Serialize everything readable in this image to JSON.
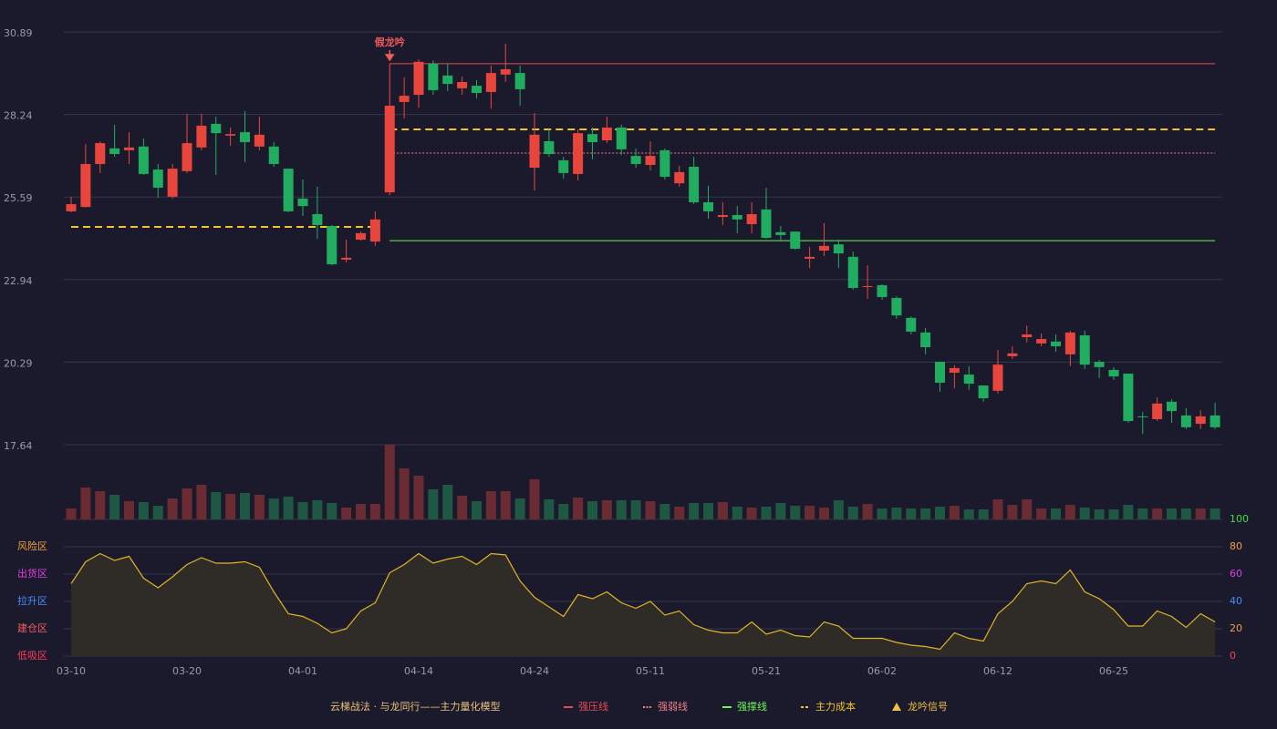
{
  "chart_data": {
    "type": "candlestick",
    "categories": [
      "03-10",
      null,
      null,
      null,
      null,
      null,
      null,
      null,
      "03-20",
      null,
      null,
      null,
      null,
      null,
      null,
      null,
      "04-01",
      null,
      null,
      null,
      null,
      null,
      null,
      null,
      "04-14",
      null,
      null,
      null,
      null,
      null,
      null,
      null,
      "04-24",
      null,
      null,
      null,
      null,
      null,
      null,
      null,
      "05-11",
      null,
      null,
      null,
      null,
      null,
      null,
      null,
      "05-21",
      null,
      null,
      null,
      null,
      null,
      null,
      null,
      "06-02",
      null,
      null,
      null,
      null,
      null,
      null,
      null,
      "06-12",
      null,
      null,
      null,
      null,
      null,
      null,
      null,
      "06-25",
      null,
      null,
      null,
      null,
      null,
      null,
      null
    ],
    "ylim": [
      17.64,
      30.89
    ],
    "yticks": [
      17.64,
      20.29,
      22.94,
      25.59,
      28.24,
      30.89
    ],
    "grid": true,
    "up_color": "#e8463c",
    "down_color": "#21ad60",
    "open": [
      25.13,
      25.27,
      26.65,
      27.15,
      27.09,
      27.21,
      26.47,
      25.6,
      26.42,
      27.18,
      27.94,
      27.56,
      27.67,
      27.21,
      27.21,
      26.5,
      25.54,
      25.04,
      24.66,
      23.58,
      24.22,
      24.16,
      25.74,
      28.64,
      28.87,
      29.87,
      29.49,
      29.08,
      29.16,
      28.96,
      29.52,
      29.57,
      26.53,
      27.38,
      26.77,
      26.33,
      27.61,
      27.41,
      27.82,
      26.91,
      26.62,
      27.09,
      26.03,
      26.56,
      25.42,
      24.95,
      25.01,
      24.72,
      25.19,
      24.46,
      24.48,
      23.61,
      23.87,
      24.07,
      23.67,
      22.7,
      22.76,
      22.35,
      21.71,
      21.24,
      20.3,
      19.95,
      19.89,
      19.54,
      19.37,
      20.48,
      21.09,
      20.89,
      20.95,
      20.54,
      21.15,
      20.3,
      20.04,
      19.92,
      18.55,
      18.46,
      19.02,
      18.58,
      18.31,
      18.58
    ],
    "close": [
      25.36,
      26.65,
      27.32,
      26.97,
      27.18,
      26.33,
      25.89,
      26.5,
      27.32,
      27.88,
      27.64,
      27.61,
      27.35,
      27.59,
      26.65,
      25.13,
      25.3,
      24.69,
      23.43,
      23.64,
      24.43,
      24.87,
      28.52,
      28.84,
      29.93,
      29.02,
      29.22,
      29.28,
      28.93,
      29.57,
      29.69,
      29.05,
      27.59,
      26.97,
      26.36,
      27.64,
      27.35,
      27.82,
      27.12,
      26.65,
      26.91,
      26.24,
      26.39,
      25.42,
      25.13,
      25.01,
      24.87,
      25.04,
      24.28,
      24.37,
      23.93,
      23.67,
      24.02,
      23.78,
      22.67,
      22.73,
      22.38,
      21.79,
      21.27,
      20.77,
      19.63,
      20.1,
      19.6,
      19.13,
      20.21,
      20.57,
      21.18,
      21.03,
      20.8,
      21.24,
      20.21,
      20.13,
      19.83,
      18.4,
      18.52,
      18.96,
      18.72,
      18.2,
      18.55,
      18.2
    ],
    "high": [
      25.6,
      27.29,
      27.38,
      27.91,
      27.67,
      27.47,
      26.65,
      26.65,
      28.26,
      28.26,
      28.17,
      27.82,
      28.35,
      28.17,
      27.35,
      26.5,
      26.15,
      25.92,
      24.69,
      24.22,
      24.48,
      25.13,
      28.52,
      29.43,
      30.01,
      29.98,
      29.87,
      29.46,
      29.34,
      29.81,
      30.51,
      29.81,
      28.29,
      27.76,
      26.88,
      27.76,
      27.82,
      28.17,
      27.91,
      27.15,
      27.38,
      27.15,
      26.59,
      26.88,
      25.95,
      25.42,
      25.3,
      25.42,
      25.89,
      24.66,
      24.48,
      23.99,
      24.75,
      24.22,
      23.84,
      23.4,
      22.79,
      22.41,
      21.76,
      21.38,
      20.3,
      20.19,
      20.16,
      19.54,
      20.68,
      20.8,
      21.47,
      21.21,
      21.18,
      21.3,
      21.3,
      20.36,
      20.13,
      19.92,
      18.69,
      19.16,
      19.1,
      18.81,
      18.75,
      18.99
    ],
    "low": [
      25.1,
      25.25,
      26.36,
      26.88,
      26.65,
      26.3,
      25.57,
      25.54,
      26.36,
      27.09,
      26.3,
      27.23,
      26.71,
      27.09,
      26.56,
      25.1,
      24.98,
      24.25,
      23.4,
      23.49,
      24.19,
      24.02,
      25.65,
      28.11,
      28.46,
      28.87,
      28.99,
      28.87,
      28.76,
      28.43,
      29.28,
      28.52,
      25.8,
      26.88,
      26.18,
      26.12,
      26.8,
      27.32,
      26.94,
      26.53,
      26.44,
      26.15,
      25.92,
      25.36,
      24.89,
      24.69,
      24.43,
      24.43,
      24.25,
      24.16,
      23.9,
      23.31,
      23.7,
      23.31,
      22.61,
      22.32,
      22.29,
      21.68,
      21.18,
      20.54,
      19.34,
      19.45,
      19.4,
      19.02,
      19.28,
      20.39,
      20.92,
      20.8,
      20.62,
      20.16,
      20.07,
      19.78,
      19.72,
      18.34,
      17.99,
      18.4,
      18.34,
      18.14,
      18.14,
      18.14
    ],
    "volume": [
      12,
      35,
      31,
      27,
      20,
      19,
      15,
      23,
      34,
      38,
      30,
      28,
      29,
      27,
      23,
      25,
      19,
      21,
      18,
      13,
      17,
      17,
      82,
      56,
      48,
      33,
      38,
      26,
      20,
      31,
      31,
      23,
      44,
      22,
      17,
      24,
      20,
      21,
      21,
      21,
      20,
      17,
      14,
      18,
      18,
      19,
      14,
      13,
      14,
      18,
      15,
      15,
      13,
      21,
      14,
      17,
      12,
      13,
      12,
      12,
      14,
      15,
      11,
      11,
      22,
      16,
      22,
      12,
      12,
      16,
      13,
      11,
      11,
      16,
      12,
      12,
      12,
      12,
      12,
      12
    ],
    "volume_up_color": "#6a2b33",
    "volume_down_color": "#1e5743",
    "lines": [
      {
        "name": "强压线",
        "color": "#e64b55",
        "style": "solid",
        "values": [
          null,
          null,
          null,
          null,
          null,
          null,
          null,
          null,
          null,
          null,
          null,
          null,
          null,
          null,
          null,
          null,
          null,
          null,
          null,
          null,
          null,
          null,
          29.87,
          29.87,
          29.87,
          29.87,
          29.87,
          29.87,
          29.87,
          29.87,
          29.87,
          29.87,
          29.87,
          29.87,
          29.87,
          29.87,
          29.87,
          29.87,
          29.87,
          29.87,
          29.87,
          29.87,
          29.87,
          29.87,
          29.87,
          29.87,
          29.87,
          29.87,
          29.87,
          29.87,
          29.87,
          29.87,
          29.87,
          29.87,
          29.87,
          29.87,
          29.87,
          29.87,
          29.87,
          29.87,
          29.87,
          29.87,
          29.87,
          29.87,
          29.87,
          29.87,
          29.87,
          29.87,
          29.87,
          29.87,
          29.87,
          29.87,
          29.87,
          29.87,
          29.87,
          29.87,
          29.87,
          29.87,
          29.87,
          29.87
        ]
      },
      {
        "name": "强弱线",
        "color": "#f07f8c",
        "style": "dotted",
        "values": [
          null,
          null,
          null,
          null,
          null,
          null,
          null,
          null,
          null,
          null,
          null,
          null,
          null,
          null,
          null,
          null,
          null,
          null,
          null,
          null,
          null,
          null,
          27.0,
          27.0,
          27.0,
          27.0,
          27.0,
          27.0,
          27.0,
          27.0,
          27.0,
          27.0,
          27.0,
          27.0,
          27.0,
          27.0,
          27.0,
          27.0,
          27.0,
          27.0,
          27.0,
          27.0,
          27.0,
          27.0,
          27.0,
          27.0,
          27.0,
          27.0,
          27.0,
          27.0,
          27.0,
          27.0,
          27.0,
          27.0,
          27.0,
          27.0,
          27.0,
          27.0,
          27.0,
          27.0,
          27.0,
          27.0,
          27.0,
          27.0,
          27.0,
          27.0,
          27.0,
          27.0,
          27.0,
          27.0,
          27.0,
          27.0,
          27.0,
          27.0,
          27.0,
          27.0,
          27.0,
          27.0,
          27.0,
          27.0
        ]
      },
      {
        "name": "强撑线",
        "color": "#6cf55a",
        "style": "solid",
        "values": [
          null,
          null,
          null,
          null,
          null,
          null,
          null,
          null,
          null,
          null,
          null,
          null,
          null,
          null,
          null,
          null,
          null,
          null,
          null,
          null,
          null,
          null,
          24.19,
          24.19,
          24.19,
          24.19,
          24.19,
          24.19,
          24.19,
          24.19,
          24.19,
          24.19,
          24.19,
          24.19,
          24.19,
          24.19,
          24.19,
          24.19,
          24.19,
          24.19,
          24.19,
          24.19,
          24.19,
          24.19,
          24.19,
          24.19,
          24.19,
          24.19,
          24.19,
          24.19,
          24.19,
          24.19,
          24.19,
          24.19,
          24.19,
          24.19,
          24.19,
          24.19,
          24.19,
          24.19,
          24.19,
          24.19,
          24.19,
          24.19,
          24.19,
          24.19,
          24.19,
          24.19,
          24.19,
          24.19,
          24.19,
          24.19,
          24.19,
          24.19,
          24.19,
          24.19,
          24.19,
          24.19,
          24.19,
          24.19
        ]
      },
      {
        "name": "主力成本",
        "color": "#f2c12e",
        "style": "dashed",
        "values": [
          24.63,
          24.63,
          24.63,
          24.63,
          24.63,
          24.63,
          24.63,
          24.63,
          24.63,
          24.63,
          24.63,
          24.63,
          24.63,
          24.63,
          24.63,
          24.63,
          24.63,
          24.63,
          24.63,
          24.63,
          24.63,
          24.63,
          27.76,
          27.76,
          27.76,
          27.76,
          27.76,
          27.76,
          27.76,
          27.76,
          27.76,
          27.76,
          27.76,
          27.76,
          27.76,
          27.76,
          27.76,
          27.76,
          27.76,
          27.76,
          27.76,
          27.76,
          27.76,
          27.76,
          27.76,
          27.76,
          27.76,
          27.76,
          27.76,
          27.76,
          27.76,
          27.76,
          27.76,
          27.76,
          27.76,
          27.76,
          27.76,
          27.76,
          27.76,
          27.76,
          27.76,
          27.76,
          27.76,
          27.76,
          27.76,
          27.76,
          27.76,
          27.76,
          27.76,
          27.76,
          27.76,
          27.76,
          27.76,
          27.76,
          27.76,
          27.76,
          27.76,
          27.76,
          27.76,
          27.76
        ]
      }
    ],
    "annotations": [
      {
        "text": "假龙吟",
        "index": 22,
        "color": "#f05a5a"
      }
    ],
    "signals": [
      {
        "name": "龙吟信号",
        "symbol": "triangle",
        "color": "#f0c040"
      }
    ],
    "indicator": {
      "values": [
        53,
        69,
        75,
        70,
        73,
        57,
        50,
        58,
        67,
        72,
        68,
        68,
        69,
        65,
        47,
        31,
        29,
        24,
        17,
        20,
        33,
        39,
        61,
        67,
        75,
        68,
        71,
        73,
        67,
        75,
        74,
        55,
        43,
        36,
        29,
        45,
        42,
        47,
        39,
        35,
        40,
        30,
        33,
        23,
        19,
        17,
        17,
        25,
        16,
        19,
        15,
        14,
        25,
        22,
        13,
        13,
        13,
        10,
        8,
        7,
        5,
        17,
        13,
        11,
        31,
        40,
        53,
        55,
        53,
        63,
        47,
        42,
        34,
        22,
        22,
        33,
        29,
        21,
        31,
        25
      ],
      "color": "#e2b424",
      "fill": "#2f2c27",
      "ylim": [
        0,
        100
      ],
      "yticks": [
        0,
        20,
        40,
        60,
        80,
        100
      ],
      "tick_colors": [
        "#ff3c5a",
        "#f0a040",
        "#4a8cff",
        "#e040e0",
        "#f0a040",
        "#40e040"
      ],
      "zones": [
        {
          "label": "低吸区",
          "value": 0,
          "color": "#ff3c5a"
        },
        {
          "label": "建仓区",
          "value": 20,
          "color": "#f06060"
        },
        {
          "label": "拉升区",
          "value": 40,
          "color": "#4a8cff"
        },
        {
          "label": "出货区",
          "value": 60,
          "color": "#e040e0"
        },
        {
          "label": "风险区",
          "value": 80,
          "color": "#f0a040"
        }
      ]
    },
    "legend_title": "云梯战法 · 与龙同行——主力量化模型",
    "legend_title_color": "#e8c27a"
  }
}
